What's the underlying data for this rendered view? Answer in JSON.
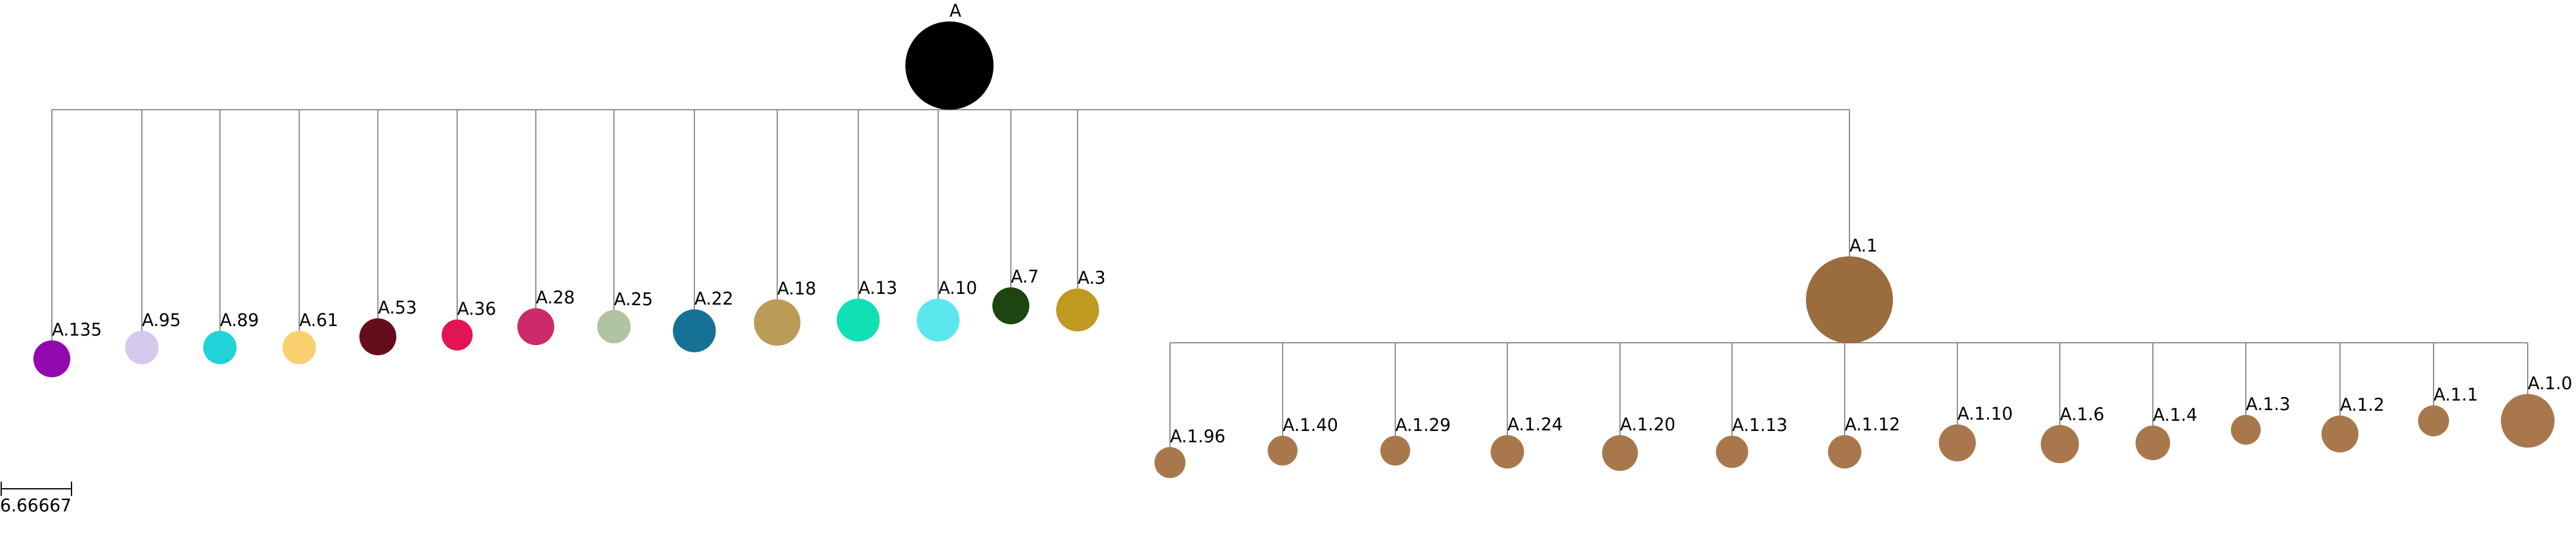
{
  "tree": {
    "root": {
      "label": "A",
      "color": "#000000"
    },
    "children": [
      {
        "label": "A.135",
        "color": "#9209b0"
      },
      {
        "label": "A.95",
        "color": "#d6c9ee"
      },
      {
        "label": "A.89",
        "color": "#21d2d8"
      },
      {
        "label": "A.61",
        "color": "#f8d06e"
      },
      {
        "label": "A.53",
        "color": "#660d1d"
      },
      {
        "label": "A.36",
        "color": "#e31455"
      },
      {
        "label": "A.28",
        "color": "#cc2a6b"
      },
      {
        "label": "A.25",
        "color": "#b1c4a1"
      },
      {
        "label": "A.22",
        "color": "#157295"
      },
      {
        "label": "A.18",
        "color": "#bb9b56"
      },
      {
        "label": "A.13",
        "color": "#10e1b5"
      },
      {
        "label": "A.10",
        "color": "#5ce7ef"
      },
      {
        "label": "A.7",
        "color": "#1d4411"
      },
      {
        "label": "A.3",
        "color": "#bf9a21"
      },
      {
        "label": "A.1",
        "color": "#9a6c3e"
      }
    ],
    "subtree": {
      "parent": "A.1",
      "children": [
        {
          "label": "A.1.96",
          "color": "#a8784c"
        },
        {
          "label": "A.1.40",
          "color": "#a8784c"
        },
        {
          "label": "A.1.29",
          "color": "#a8784c"
        },
        {
          "label": "A.1.24",
          "color": "#a8784c"
        },
        {
          "label": "A.1.20",
          "color": "#a8784c"
        },
        {
          "label": "A.1.13",
          "color": "#a8784c"
        },
        {
          "label": "A.1.12",
          "color": "#a8784c"
        },
        {
          "label": "A.1.10",
          "color": "#a8784c"
        },
        {
          "label": "A.1.6",
          "color": "#a8784c"
        },
        {
          "label": "A.1.4",
          "color": "#a8784c"
        },
        {
          "label": "A.1.3",
          "color": "#a8784c"
        },
        {
          "label": "A.1.2",
          "color": "#a8784c"
        },
        {
          "label": "A.1.1",
          "color": "#a8784c"
        },
        {
          "label": "A.1.0",
          "color": "#a8784c"
        }
      ]
    }
  },
  "scale_bar": {
    "label": "6.66667"
  }
}
